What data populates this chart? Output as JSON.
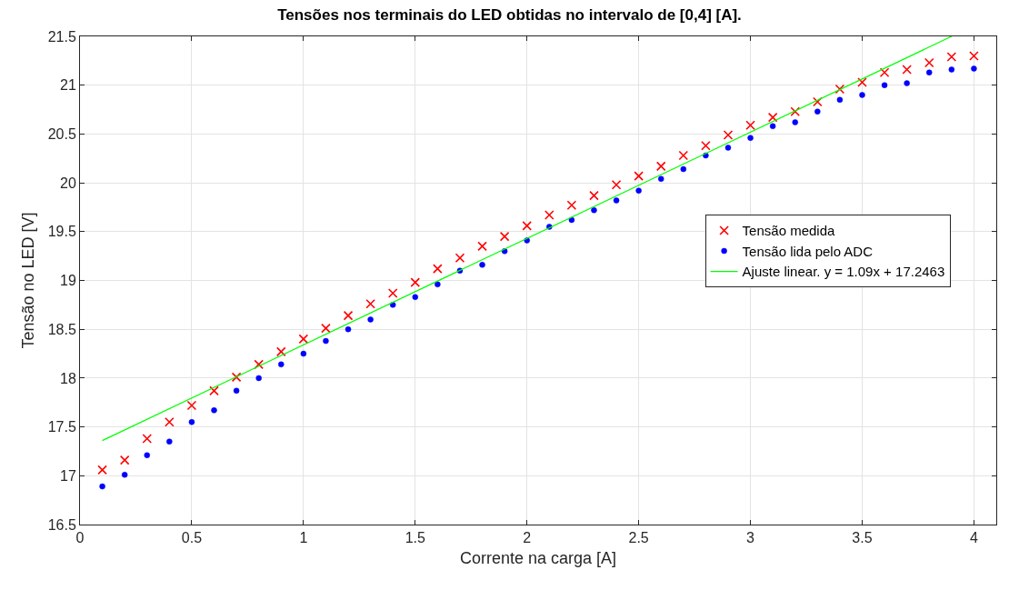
{
  "chart_data": {
    "type": "scatter",
    "title": "Tensões nos terminais do LED obtidas no intervalo de [0,4] [A].",
    "xlabel": "Corrente na carga [A]",
    "ylabel": "Tensão no LED [V]",
    "x": [
      0.1,
      0.2,
      0.3,
      0.4,
      0.5,
      0.6,
      0.7,
      0.8,
      0.9,
      1.0,
      1.1,
      1.2,
      1.3,
      1.4,
      1.5,
      1.6,
      1.7,
      1.8,
      1.9,
      2.0,
      2.1,
      2.2,
      2.3,
      2.4,
      2.5,
      2.6,
      2.7,
      2.8,
      2.9,
      3.0,
      3.1,
      3.2,
      3.3,
      3.4,
      3.5,
      3.6,
      3.7,
      3.8,
      3.9,
      4.0
    ],
    "series": [
      {
        "name": "Tensão medida",
        "color": "#ff0000",
        "marker": "cross",
        "values": [
          17.06,
          17.16,
          17.38,
          17.55,
          17.72,
          17.87,
          18.01,
          18.14,
          18.27,
          18.4,
          18.51,
          18.64,
          18.76,
          18.87,
          18.98,
          19.12,
          19.23,
          19.35,
          19.45,
          19.56,
          19.67,
          19.77,
          19.87,
          19.98,
          20.07,
          20.17,
          20.28,
          20.38,
          20.49,
          20.59,
          20.67,
          20.73,
          20.83,
          20.96,
          21.03,
          21.13,
          21.16,
          21.23,
          21.29,
          21.3
        ]
      },
      {
        "name": "Tensão lida pelo ADC",
        "color": "#0000ff",
        "marker": "circle",
        "values": [
          16.89,
          17.01,
          17.21,
          17.35,
          17.55,
          17.67,
          17.87,
          18.0,
          18.14,
          18.25,
          18.38,
          18.5,
          18.6,
          18.75,
          18.83,
          18.96,
          19.1,
          19.16,
          19.3,
          19.41,
          19.55,
          19.62,
          19.72,
          19.82,
          19.92,
          20.04,
          20.14,
          20.28,
          20.36,
          20.46,
          20.58,
          20.62,
          20.73,
          20.85,
          20.9,
          21.0,
          21.02,
          21.13,
          21.16,
          21.17
        ]
      },
      {
        "name": "Ajuste linear. y = 1.09x + 17.2463",
        "type": "line",
        "color": "#00ff00",
        "marker": "none",
        "line_style": "solid",
        "x": [
          0.1,
          3.9
        ],
        "values": [
          17.36,
          21.5
        ]
      }
    ],
    "xlim": [
      0,
      4.1
    ],
    "xticks": [
      0,
      0.5,
      1,
      1.5,
      2,
      2.5,
      3,
      3.5,
      4
    ],
    "ylim": [
      16.5,
      21.5
    ],
    "yticks": [
      16.5,
      17,
      17.5,
      18,
      18.5,
      19,
      19.5,
      20,
      20.5,
      21,
      21.5
    ],
    "grid": true,
    "legend": "right"
  }
}
